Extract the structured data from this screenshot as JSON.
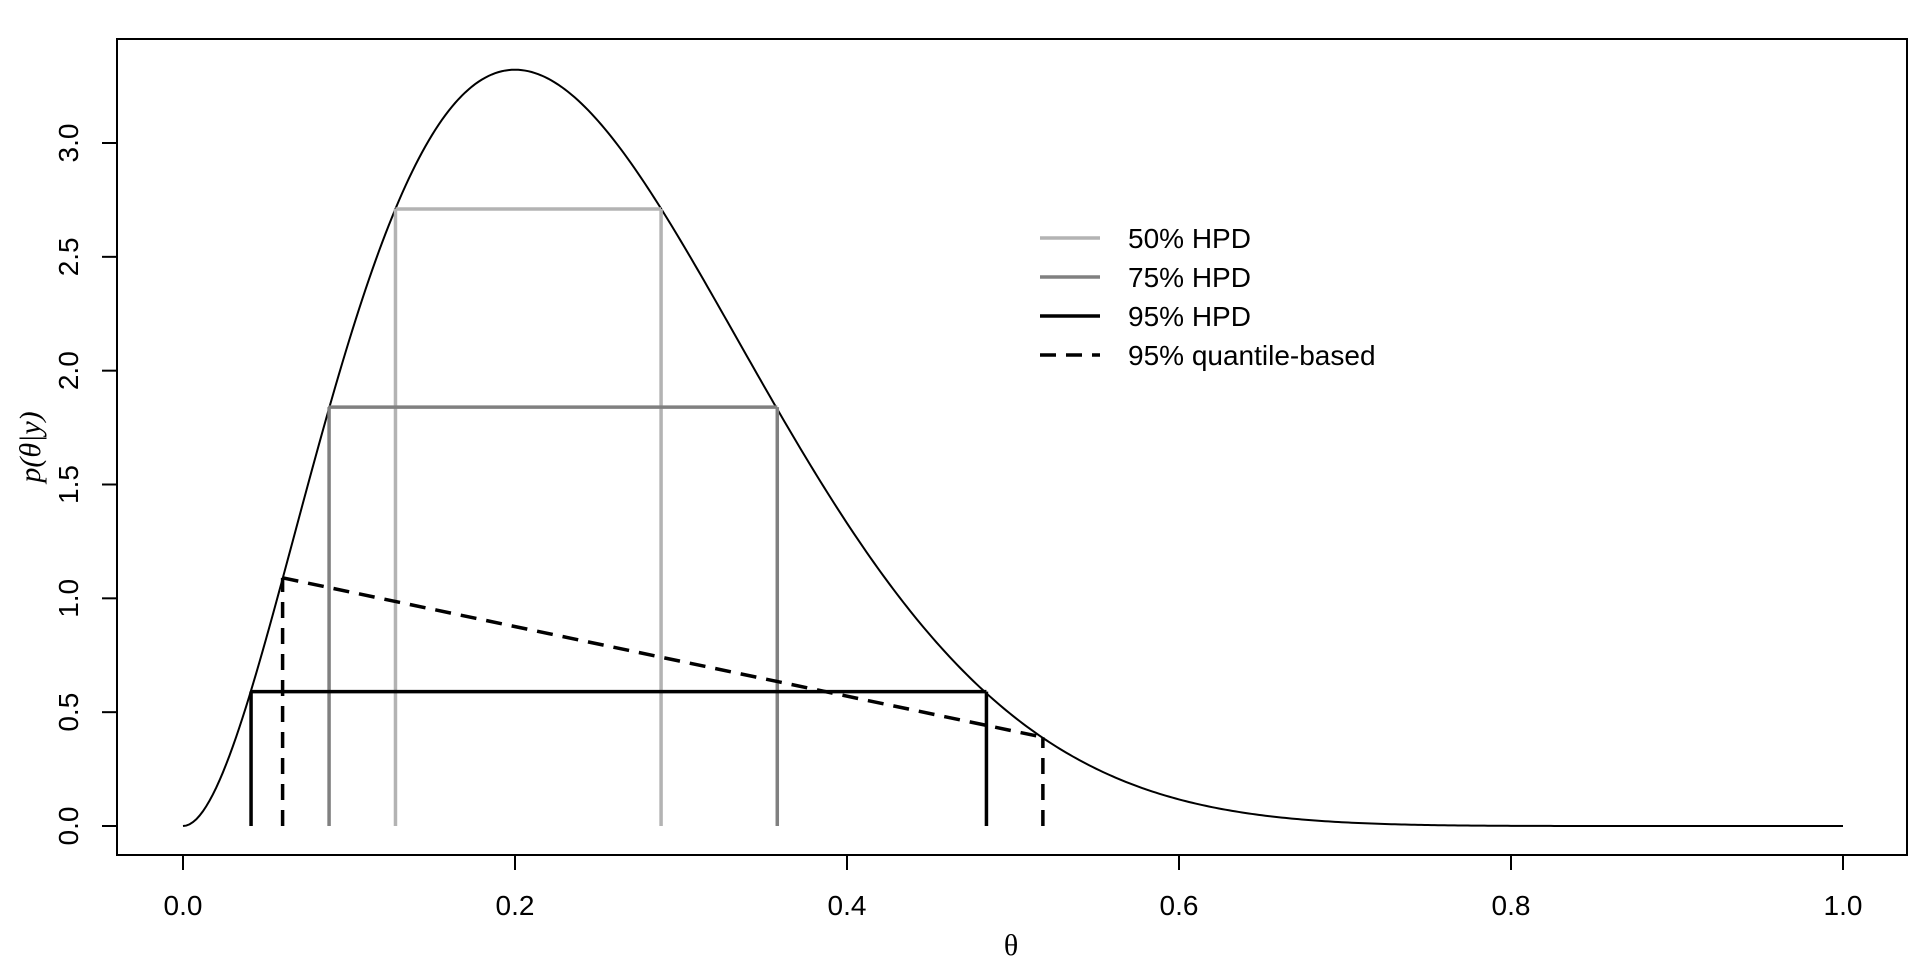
{
  "chart_data": {
    "type": "line",
    "title": "",
    "xlabel": "θ",
    "ylabel": "p(θ|y)",
    "xlim": [
      0,
      1
    ],
    "ylim": [
      0,
      3.3
    ],
    "grid": false,
    "x_ticks": [
      "0.0",
      "0.2",
      "0.4",
      "0.6",
      "0.8",
      "1.0"
    ],
    "x_tick_values": [
      0,
      0.2,
      0.4,
      0.6,
      0.8,
      1.0
    ],
    "y_ticks": [
      "0.0",
      "0.5",
      "1.0",
      "1.5",
      "2.0",
      "2.5",
      "3.0"
    ],
    "y_tick_values": [
      0,
      0.5,
      1.0,
      1.5,
      2.0,
      2.5,
      3.0
    ],
    "density": {
      "distribution": "beta",
      "alpha": 3,
      "beta": 9
    },
    "series": [
      {
        "name": "50% HPD",
        "color": "#b3b3b3",
        "style": "solid",
        "lower": 0.128,
        "upper": 0.288,
        "level": 2.71
      },
      {
        "name": "75% HPD",
        "color": "#808080",
        "style": "solid",
        "lower": 0.088,
        "upper": 0.358,
        "level": 1.84
      },
      {
        "name": "95% HPD",
        "color": "#000000",
        "style": "solid",
        "lower": 0.041,
        "upper": 0.484,
        "level": 0.59
      },
      {
        "name": "95% quantile-based",
        "color": "#000000",
        "style": "dashed",
        "lower": 0.06,
        "upper": 0.518,
        "level_lower": 1.09,
        "level_upper": 0.39
      }
    ],
    "legend_position": "top-right"
  }
}
